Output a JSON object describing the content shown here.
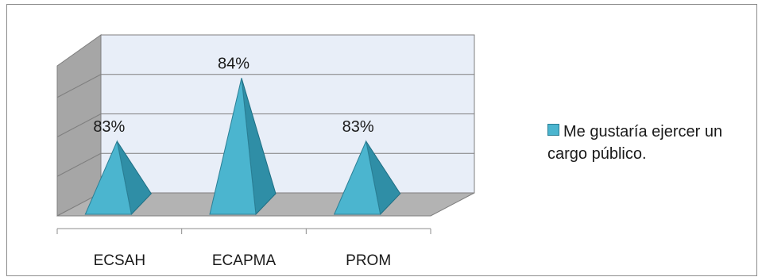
{
  "chart_data": {
    "type": "bar",
    "style": "3d-pyramid",
    "categories": [
      "ECSAH",
      "ECAPMA",
      "PROM"
    ],
    "series": [
      {
        "name": "Me gustaría ejercer un cargo público.",
        "values": [
          83,
          84,
          83
        ],
        "color": "#4bb5cf"
      }
    ],
    "data_labels": [
      "83%",
      "84%",
      "83%"
    ],
    "ylim": [
      82,
      84.5
    ],
    "grid": true,
    "legend": "right",
    "wall_color": "#e8eef8",
    "floor_color": "#b3b3b3",
    "side_wall_color": "#a6a6a6"
  }
}
